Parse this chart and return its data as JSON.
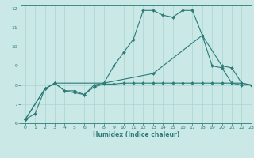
{
  "xlabel": "Humidex (Indice chaleur)",
  "xlim": [
    -0.5,
    23
  ],
  "ylim": [
    6,
    12.2
  ],
  "xticks": [
    0,
    1,
    2,
    3,
    4,
    5,
    6,
    7,
    8,
    9,
    10,
    11,
    12,
    13,
    14,
    15,
    16,
    17,
    18,
    19,
    20,
    21,
    22,
    23
  ],
  "yticks": [
    6,
    7,
    8,
    9,
    10,
    11,
    12
  ],
  "bg_color": "#c9e8e6",
  "line_color": "#2b7b78",
  "grid_color": "#aad4d0",
  "line1_x": [
    0,
    1,
    2,
    3,
    4,
    5,
    6,
    7,
    8,
    9,
    10,
    11,
    12,
    13,
    14,
    15,
    16,
    17,
    18,
    19,
    20,
    21,
    22,
    23
  ],
  "line1_y": [
    6.2,
    6.5,
    7.8,
    8.1,
    7.7,
    7.6,
    7.5,
    8.0,
    8.1,
    9.0,
    9.7,
    10.4,
    11.9,
    11.9,
    11.65,
    11.55,
    11.9,
    11.9,
    10.6,
    9.0,
    8.9,
    8.1,
    8.0,
    8.0
  ],
  "line2_x": [
    0,
    2,
    3,
    4,
    5,
    6,
    7,
    8,
    9,
    10,
    11,
    12,
    13,
    14,
    15,
    16,
    17,
    18,
    19,
    20,
    21,
    22,
    23
  ],
  "line2_y": [
    6.2,
    7.8,
    8.1,
    7.7,
    7.7,
    7.5,
    7.9,
    8.05,
    8.05,
    8.1,
    8.1,
    8.1,
    8.1,
    8.1,
    8.1,
    8.1,
    8.1,
    8.1,
    8.1,
    8.1,
    8.1,
    8.1,
    8.0
  ],
  "line3_x": [
    0,
    2,
    3,
    8,
    13,
    18,
    20,
    21,
    22,
    23
  ],
  "line3_y": [
    6.2,
    7.8,
    8.1,
    8.1,
    8.6,
    10.6,
    9.0,
    8.9,
    8.1,
    8.0
  ]
}
